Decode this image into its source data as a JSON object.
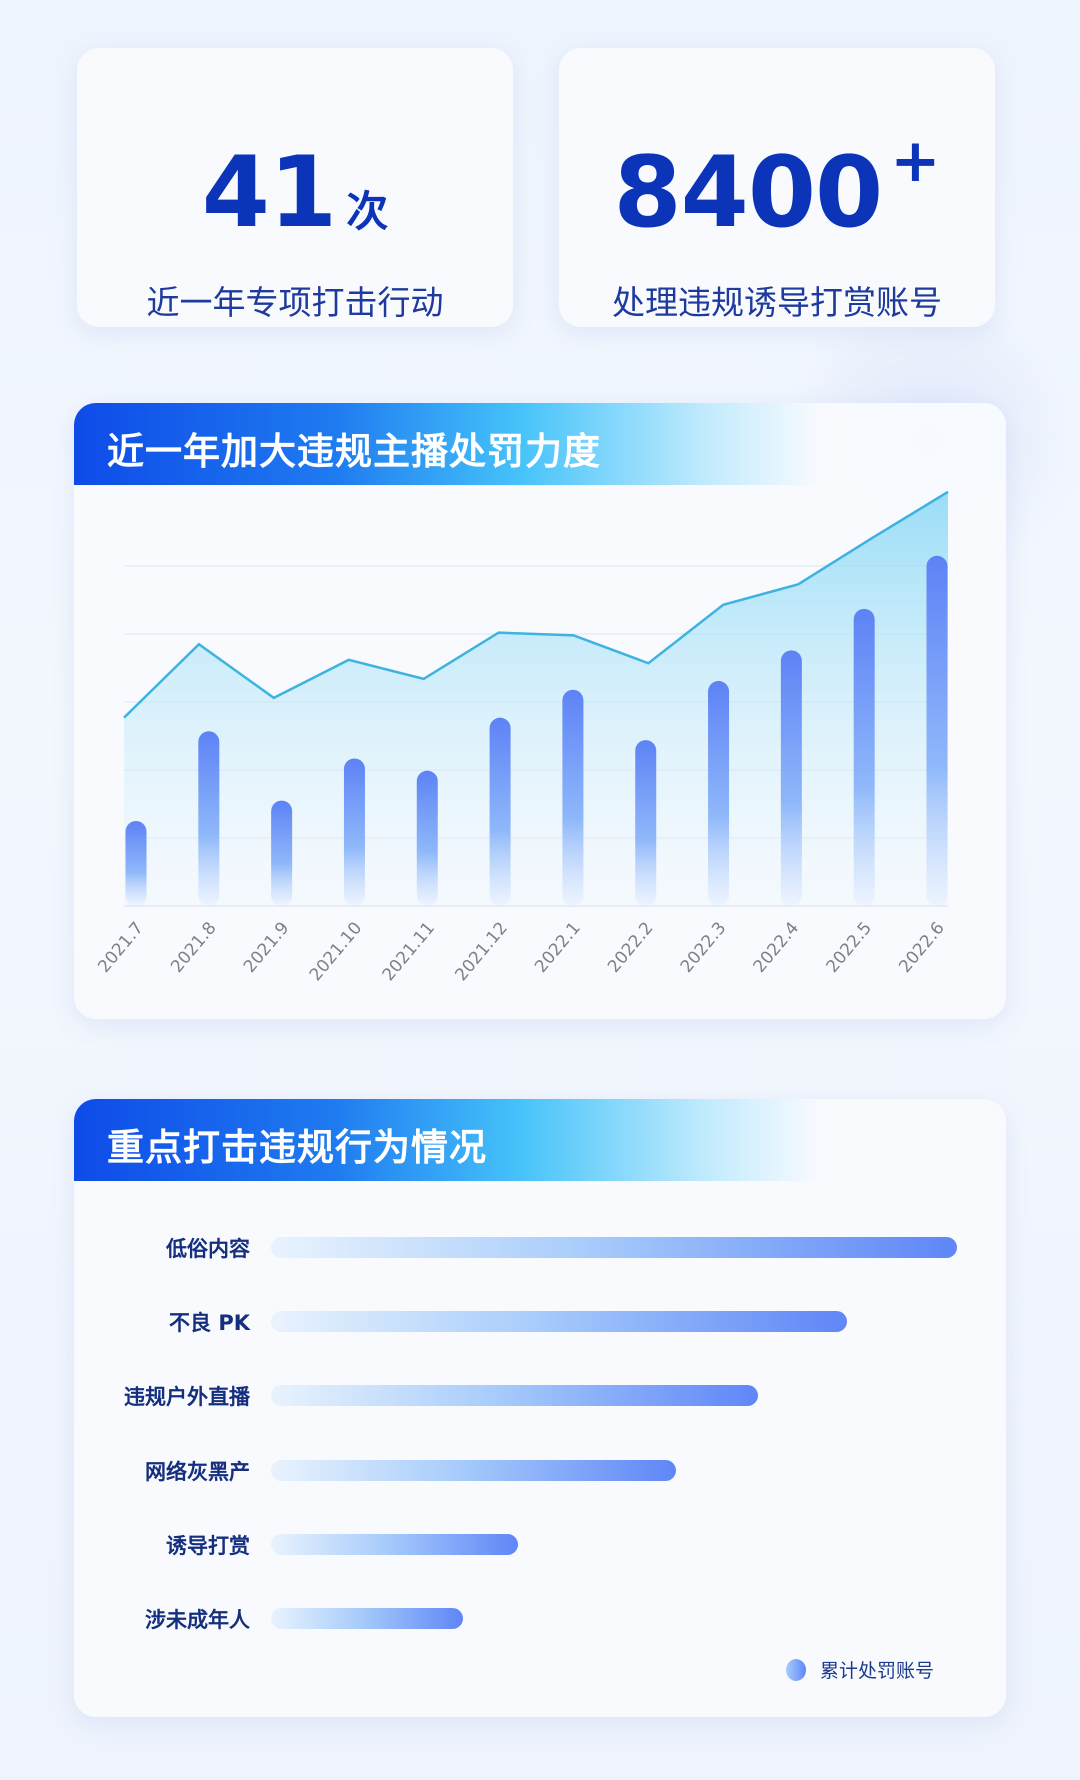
{
  "stats": [
    {
      "value": "41",
      "unit": "次",
      "label": "近一年专项打击行动"
    },
    {
      "value": "8400",
      "suffix": "+",
      "label": "处理违规诱导打赏账号"
    }
  ],
  "colors": {
    "accent": "#0b34b9",
    "bar": "#5f86f7",
    "line": "#3fb3e0",
    "header_start": "#0e4be8",
    "header_end": "#46c3fa"
  },
  "chart_data": [
    {
      "type": "bar+line",
      "title": "近一年加大违规主播处罚力度",
      "categories": [
        "2021.7",
        "2021.8",
        "2021.9",
        "2021.10",
        "2021.11",
        "2021.12",
        "2022.1",
        "2022.2",
        "2022.3",
        "2022.4",
        "2022.5",
        "2022.6"
      ],
      "series": [
        {
          "type": "bar",
          "values": [
            1.25,
            2.57,
            1.55,
            2.17,
            1.99,
            2.77,
            3.18,
            2.44,
            3.31,
            3.76,
            4.37,
            5.15
          ]
        },
        {
          "type": "area-line",
          "values": [
            2.77,
            3.85,
            3.06,
            3.62,
            3.34,
            4.02,
            3.98,
            3.57,
            4.43,
            4.73,
            5.42,
            6.09
          ]
        }
      ],
      "ylim": [
        0,
        6.3
      ],
      "grid": true,
      "y_tick_labels_shown": false
    },
    {
      "type": "bar",
      "orientation": "horizontal",
      "title": "重点打击违规行为情况",
      "categories": [
        "低俗内容",
        "不良 PK",
        "违规户外直播",
        "网络灰黑产",
        "诱导打赏",
        "涉未成年人"
      ],
      "values": [
        100,
        84,
        71,
        59,
        36,
        28
      ],
      "legend": {
        "label": "累计处罚账号",
        "position": "bottom-right"
      }
    }
  ]
}
